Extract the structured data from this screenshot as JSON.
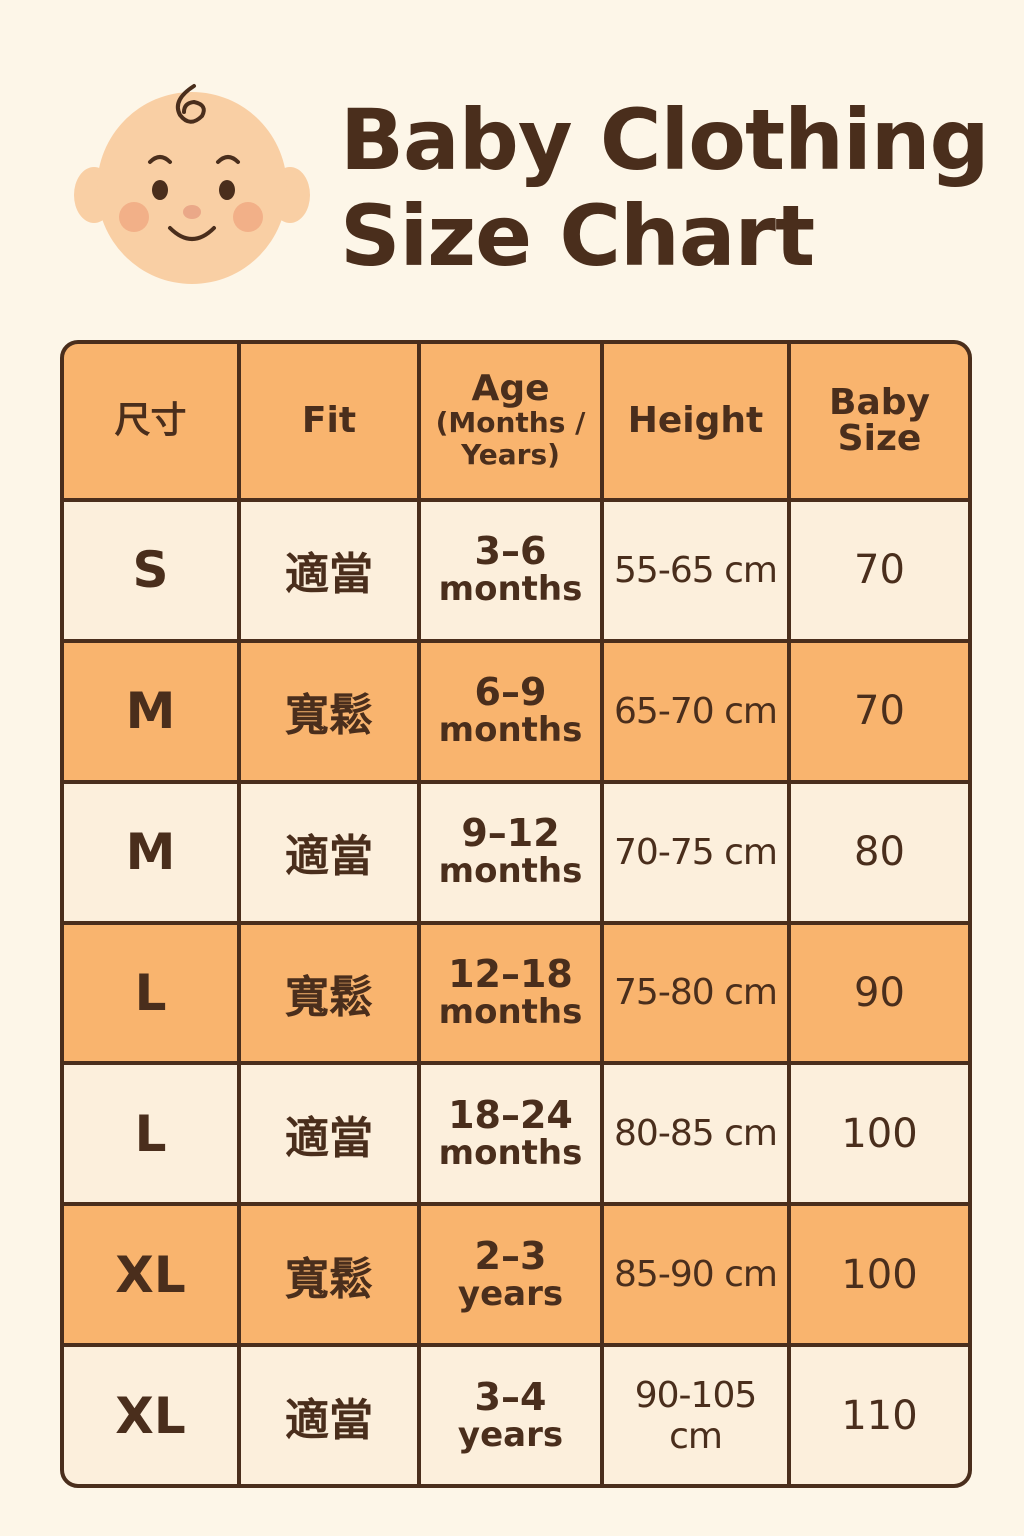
{
  "title": {
    "line1": "Baby Clothing",
    "line2": "Size Chart"
  },
  "icon": "baby-face-icon",
  "colors": {
    "background": "#fdf6e8",
    "header": "#f9b46e",
    "row_light": "#fcefdc",
    "row_orange": "#f9b46e",
    "border": "#4a2e1c"
  },
  "table": {
    "headers": {
      "size": "尺寸",
      "fit": "Fit",
      "age_1": "Age",
      "age_2": "(Months /",
      "age_3": "Years)",
      "height": "Height",
      "baby_1": "Baby",
      "baby_2": "Size"
    },
    "rows": [
      {
        "size": "S",
        "fit": "適當",
        "age_num": "3–6",
        "age_unit": "months",
        "height": "55-65 cm",
        "baby_size": "70"
      },
      {
        "size": "M",
        "fit": "寬鬆",
        "age_num": "6–9",
        "age_unit": "months",
        "height": "65-70 cm",
        "baby_size": "70"
      },
      {
        "size": "M",
        "fit": "適當",
        "age_num": "9–12",
        "age_unit": "months",
        "height": "70-75 cm",
        "baby_size": "80"
      },
      {
        "size": "L",
        "fit": "寬鬆",
        "age_num": "12–18",
        "age_unit": "months",
        "height": "75-80 cm",
        "baby_size": "90"
      },
      {
        "size": "L",
        "fit": "適當",
        "age_num": "18–24",
        "age_unit": "months",
        "height": "80-85 cm",
        "baby_size": "100"
      },
      {
        "size": "XL",
        "fit": "寬鬆",
        "age_num": "2–3",
        "age_unit": "years",
        "height": "85-90 cm",
        "baby_size": "100"
      },
      {
        "size": "XL",
        "fit": "適當",
        "age_num": "3–4",
        "age_unit": "years",
        "height": "90-105 cm",
        "baby_size": "110"
      }
    ]
  }
}
